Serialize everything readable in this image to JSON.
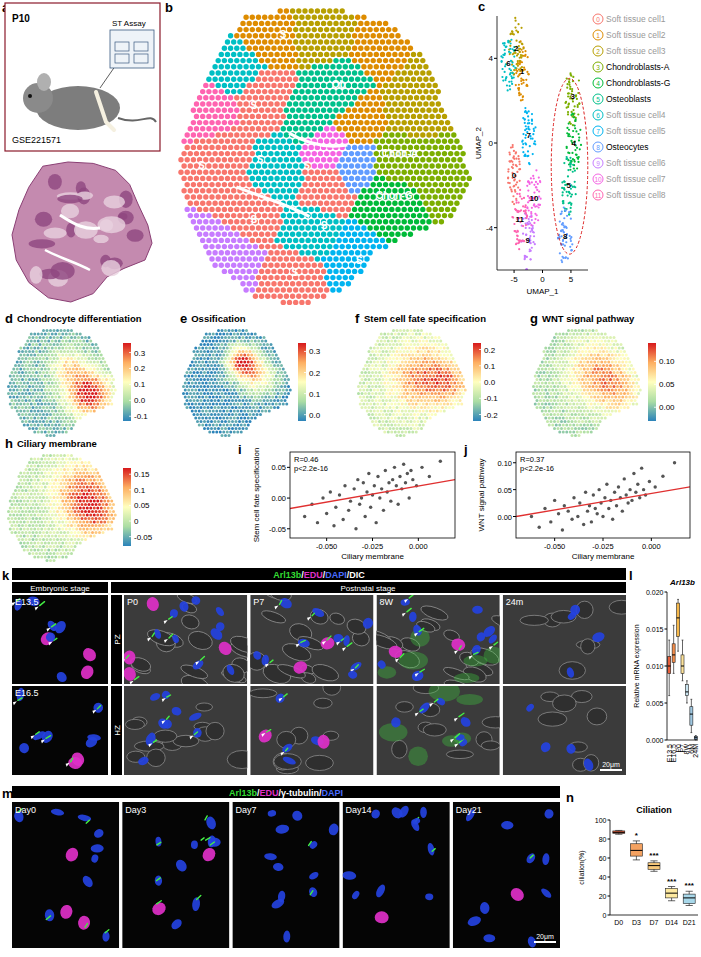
{
  "figure": {
    "a": {
      "letter": "a",
      "age": "P10",
      "assay": "ST Assay",
      "accession": "GSE221571"
    },
    "b": {
      "letter": "b",
      "region_labels": [
        "S",
        "S",
        "Ob",
        "S",
        "S",
        "S",
        "Chon-A",
        "Chon-G",
        "S",
        "S",
        "S",
        "S"
      ]
    },
    "feature_maps": [
      {
        "letter": "d",
        "title": "Chondrocyte differentiation",
        "colorbar_range": [
          -0.13,
          0.36
        ],
        "colorbar_ticks": [
          0.3,
          0.2,
          0.1,
          {
            "value": 0,
            "label": "0.0"
          },
          -0.1
        ]
      },
      {
        "letter": "e",
        "title": "Ossification",
        "colorbar_range": [
          -0.03,
          0.34
        ],
        "colorbar_ticks": [
          0.3,
          0.2,
          0.1,
          {
            "value": 0,
            "label": "0.0"
          }
        ]
      },
      {
        "letter": "f",
        "title": "Stem cell fate specification",
        "colorbar_range": [
          -0.24,
          0.24
        ],
        "colorbar_ticks": [
          0.2,
          0.1,
          {
            "value": 0,
            "label": "0.0"
          },
          -0.1,
          -0.2
        ]
      },
      {
        "letter": "g",
        "title": "WNT signal pathway",
        "colorbar_range": [
          -0.03,
          0.14
        ],
        "colorbar_ticks": [
          {
            "value": 0.1,
            "label": "0.10"
          },
          0.05,
          {
            "value": 0,
            "label": "0.00"
          }
        ]
      },
      {
        "letter": "h",
        "title": "Ciliary membrane",
        "colorbar_range": [
          -0.08,
          0.17
        ],
        "colorbar_ticks": [
          0.15,
          0.1,
          0.05,
          0,
          -0.05
        ]
      }
    ],
    "k": {
      "letter": "k",
      "stain": [
        {
          "text": "Arl13b",
          "color": "#33dd33"
        },
        {
          "text": "/",
          "color": "#ffffff"
        },
        {
          "text": "EDU",
          "color": "#e030c8"
        },
        {
          "text": "/",
          "color": "#ffffff"
        },
        {
          "text": "DAPI",
          "color": "#4a6cff"
        },
        {
          "text": "/",
          "color": "#ffffff"
        },
        {
          "text": "DIC",
          "color": "#ffffff"
        }
      ],
      "groups": [
        "Embryonic stage",
        "Postnatal stage"
      ],
      "embryonic": [
        "E13.5",
        "E16.5"
      ],
      "postnatal": [
        "P0",
        "P7",
        "8W",
        "24m"
      ],
      "zones": [
        "PZ",
        "HZ"
      ],
      "scale_bar": "20μm"
    },
    "m": {
      "letter": "m",
      "stain": [
        {
          "text": "Arl13b",
          "color": "#33dd33"
        },
        {
          "text": "/",
          "color": "#ffffff"
        },
        {
          "text": "EDU",
          "color": "#e030c8"
        },
        {
          "text": "/",
          "color": "#ffffff"
        },
        {
          "text": "γ-tubulin",
          "color": "#ffffff"
        },
        {
          "text": "/",
          "color": "#ffffff"
        },
        {
          "text": "DAPI",
          "color": "#4a6cff"
        }
      ],
      "days": [
        "Day0",
        "Day3",
        "Day7",
        "Day14",
        "Day21"
      ],
      "scale_bar": "20μm"
    }
  },
  "chart_data": [
    {
      "type": "scatter",
      "letter": "c",
      "xlabel": "UMAP_1",
      "ylabel": "UMAP_2",
      "xlim": [
        -8,
        8
      ],
      "ylim": [
        -6,
        6
      ],
      "xticks": [
        -5,
        0,
        5
      ],
      "yticks": [
        -4,
        0,
        4
      ],
      "clusters": [
        {
          "id": 0,
          "name": "Soft tissue cell1",
          "color": "#F8766D",
          "label_color": "#999999",
          "x": -5,
          "y": -1.5
        },
        {
          "id": 1,
          "name": "Soft tissue cell2",
          "color": "#DE8C00",
          "label_color": "#999999",
          "x": -3.6,
          "y": 3.4
        },
        {
          "id": 2,
          "name": "Soft tissue cell3",
          "color": "#B79F00",
          "label_color": "#999999",
          "x": -4.6,
          "y": 4.5
        },
        {
          "id": 3,
          "name": "Chondroblasts-A",
          "color": "#7CAE00",
          "label_color": "#000000",
          "x": 5.3,
          "y": 2.2
        },
        {
          "id": 4,
          "name": "Chondroblasts-G",
          "color": "#00BA38",
          "label_color": "#000000",
          "x": 5.5,
          "y": 0
        },
        {
          "id": 5,
          "name": "Osteoblasts",
          "color": "#00C08B",
          "label_color": "#000000",
          "x": 4.6,
          "y": -2
        },
        {
          "id": 6,
          "name": "Soft tissue cell4",
          "color": "#00BFC4",
          "label_color": "#999999",
          "x": -6,
          "y": 3.8
        },
        {
          "id": 7,
          "name": "Soft tissue cell5",
          "color": "#00B4F0",
          "label_color": "#999999",
          "x": -2.4,
          "y": 0.4
        },
        {
          "id": 8,
          "name": "Osteocytes",
          "color": "#619CFF",
          "label_color": "#000000",
          "x": 4,
          "y": -4.4
        },
        {
          "id": 9,
          "name": "Soft tissue cell6",
          "color": "#C77CFF",
          "label_color": "#999999",
          "x": -2.6,
          "y": -4.6
        },
        {
          "id": 10,
          "name": "Soft tissue cell7",
          "color": "#F564E3",
          "label_color": "#999999",
          "x": -1.5,
          "y": -2.6
        },
        {
          "id": 11,
          "name": "Soft tissue cell8",
          "color": "#FF64B0",
          "label_color": "#999999",
          "x": -4,
          "y": -3.6
        }
      ]
    },
    {
      "type": "scatter",
      "letter": "i",
      "xlabel": "Ciliary membrane",
      "ylabel": "Stem cell fate specification",
      "color": "#555555",
      "xlim": [
        -0.07,
        0.02
      ],
      "ylim": [
        -0.065,
        0.075
      ],
      "xticks": [
        {
          "value": -0.05,
          "label": "-0.050"
        },
        {
          "value": -0.025,
          "label": "-0.025"
        },
        {
          "value": 0,
          "label": "0.000"
        }
      ],
      "yticks": [
        {
          "value": 0.05,
          "label": "0.05"
        },
        {
          "value": 0,
          "label": "0.00"
        },
        {
          "value": -0.05,
          "label": "-0.05"
        }
      ],
      "annotations": [
        "R=0.46",
        "p<2.2e-16"
      ],
      "fit": {
        "x": [
          -0.07,
          0.02
        ],
        "values": [
          -0.017,
          0.03
        ],
        "color": "#e03030"
      },
      "x": [
        -0.062,
        -0.058,
        -0.055,
        -0.052,
        -0.05,
        -0.048,
        -0.046,
        -0.045,
        -0.043,
        -0.041,
        -0.04,
        -0.038,
        -0.037,
        -0.035,
        -0.034,
        -0.033,
        -0.032,
        -0.031,
        -0.03,
        -0.029,
        -0.028,
        -0.027,
        -0.026,
        -0.025,
        -0.024,
        -0.023,
        -0.022,
        -0.021,
        -0.02,
        -0.019,
        -0.018,
        -0.017,
        -0.016,
        -0.015,
        -0.014,
        -0.013,
        -0.012,
        -0.011,
        -0.01,
        -0.009,
        -0.008,
        -0.007,
        -0.006,
        -0.005,
        -0.004,
        -0.003,
        -0.001,
        0.002,
        0.006,
        0.012
      ],
      "values": [
        -0.03,
        -0.01,
        -0.04,
        0.0,
        -0.025,
        0.01,
        -0.045,
        -0.015,
        0.005,
        -0.035,
        0.02,
        -0.02,
        -0.005,
        0.015,
        -0.05,
        0.03,
        -0.01,
        0.0,
        0.025,
        -0.03,
        0.01,
        0.04,
        -0.015,
        0.005,
        0.02,
        -0.04,
        0.035,
        0.0,
        0.015,
        -0.02,
        0.045,
        0.01,
        0.025,
        -0.005,
        0.03,
        0.05,
        0.02,
        -0.01,
        0.035,
        0.015,
        0.055,
        0.025,
        0.04,
        0.0,
        0.045,
        0.03,
        0.02,
        0.05,
        0.035,
        0.06
      ]
    },
    {
      "type": "scatter",
      "letter": "j",
      "xlabel": "Ciliary membrane",
      "ylabel": "WNT signal pathway",
      "color": "#555555",
      "xlim": [
        -0.07,
        0.02
      ],
      "ylim": [
        -0.04,
        0.12
      ],
      "xticks": [
        {
          "value": -0.05,
          "label": "-0.050"
        },
        {
          "value": -0.025,
          "label": "-0.025"
        },
        {
          "value": 0,
          "label": "0.000"
        }
      ],
      "yticks": [
        {
          "value": 0.1,
          "label": "0.10"
        },
        0.05,
        {
          "value": 0,
          "label": "0.00"
        }
      ],
      "annotations": [
        "R=0.37",
        "p<2.2e-16"
      ],
      "fit": {
        "x": [
          -0.07,
          0.02
        ],
        "values": [
          0.0,
          0.055
        ],
        "color": "#e03030"
      },
      "x": [
        -0.062,
        -0.058,
        -0.055,
        -0.052,
        -0.05,
        -0.048,
        -0.046,
        -0.045,
        -0.043,
        -0.041,
        -0.04,
        -0.038,
        -0.037,
        -0.035,
        -0.034,
        -0.033,
        -0.032,
        -0.031,
        -0.03,
        -0.029,
        -0.028,
        -0.027,
        -0.026,
        -0.025,
        -0.024,
        -0.023,
        -0.022,
        -0.021,
        -0.02,
        -0.019,
        -0.018,
        -0.017,
        -0.016,
        -0.015,
        -0.014,
        -0.013,
        -0.012,
        -0.011,
        -0.01,
        -0.009,
        -0.008,
        -0.007,
        -0.006,
        -0.005,
        -0.004,
        -0.003,
        -0.001,
        0.002,
        0.006,
        0.012
      ],
      "values": [
        0.0,
        -0.02,
        0.015,
        -0.01,
        0.03,
        0.005,
        -0.025,
        0.02,
        0.01,
        -0.005,
        0.035,
        0.0,
        0.025,
        -0.015,
        0.045,
        0.01,
        0.02,
        -0.01,
        0.04,
        0.015,
        0.005,
        0.05,
        0.025,
        0.0,
        0.035,
        0.06,
        0.015,
        0.03,
        -0.005,
        0.045,
        0.02,
        0.055,
        0.035,
        0.01,
        0.07,
        0.04,
        0.025,
        0.05,
        0.03,
        0.08,
        0.045,
        0.06,
        0.035,
        0.09,
        0.05,
        0.04,
        0.065,
        0.055,
        0.075,
        0.1
      ]
    },
    {
      "type": "box",
      "letter": "l",
      "title": "Arl13b",
      "ylabel": "Relative mRNA expression",
      "categories": [
        "E13.5",
        "E16.5",
        "P0",
        "P7",
        "8W",
        "6M",
        "24M"
      ],
      "colors": [
        "#e8603c",
        "#f28c4a",
        "#f6b84b",
        "#fce29a",
        "#c9e4f0",
        "#9fc7e0",
        "#7fa8cf"
      ],
      "ylim": [
        0,
        0.02
      ],
      "yticks": [
        {
          "value": 0,
          "label": "0.000"
        },
        {
          "value": 0.005,
          "label": "0.005"
        },
        {
          "value": 0.01,
          "label": "0.010"
        },
        {
          "value": 0.015,
          "label": "0.015"
        },
        {
          "value": 0.02,
          "label": "0.020"
        }
      ],
      "boxes": [
        {
          "min": 0.006,
          "q1": 0.009,
          "median": 0.01,
          "q3": 0.0113,
          "max": 0.0135
        },
        {
          "min": 0.009,
          "q1": 0.0105,
          "median": 0.0115,
          "q3": 0.013,
          "max": 0.0155
        },
        {
          "min": 0.012,
          "q1": 0.014,
          "median": 0.0165,
          "q3": 0.0185,
          "max": 0.019
        },
        {
          "min": 0.008,
          "q1": 0.009,
          "median": 0.01,
          "q3": 0.0115,
          "max": 0.0135
        },
        {
          "min": 0.005,
          "q1": 0.006,
          "median": 0.0065,
          "q3": 0.0075,
          "max": 0.008
        },
        {
          "min": 0.001,
          "q1": 0.002,
          "median": 0.0035,
          "q3": 0.0045,
          "max": 0.0055
        },
        {
          "min": 0.0,
          "q1": 0.0001,
          "median": 0.0003,
          "q3": 0.0005,
          "max": 0.0006
        }
      ]
    },
    {
      "type": "box",
      "letter": "n",
      "title": "Ciliation",
      "ylabel": "ciliation(%)",
      "categories": [
        "D0",
        "D3",
        "D7",
        "D14",
        "D21"
      ],
      "colors": [
        "#e8603c",
        "#f4a261",
        "#f6c77a",
        "#fde9a0",
        "#a8d8ea"
      ],
      "ylim": [
        0,
        100
      ],
      "yticks": [
        0,
        20,
        40,
        60,
        80,
        100
      ],
      "annotations": [
        null,
        "*",
        "***",
        "***",
        "***"
      ],
      "boxes": [
        {
          "min": 85,
          "q1": 86,
          "median": 87,
          "q3": 88.5,
          "max": 89
        },
        {
          "min": 58,
          "q1": 62,
          "median": 68,
          "q3": 75,
          "max": 78
        },
        {
          "min": 46,
          "q1": 48,
          "median": 52,
          "q3": 55,
          "max": 57
        },
        {
          "min": 15,
          "q1": 18,
          "median": 23,
          "q3": 28,
          "max": 30
        },
        {
          "min": 10,
          "q1": 12,
          "median": 18,
          "q3": 22,
          "max": 25
        }
      ]
    }
  ]
}
